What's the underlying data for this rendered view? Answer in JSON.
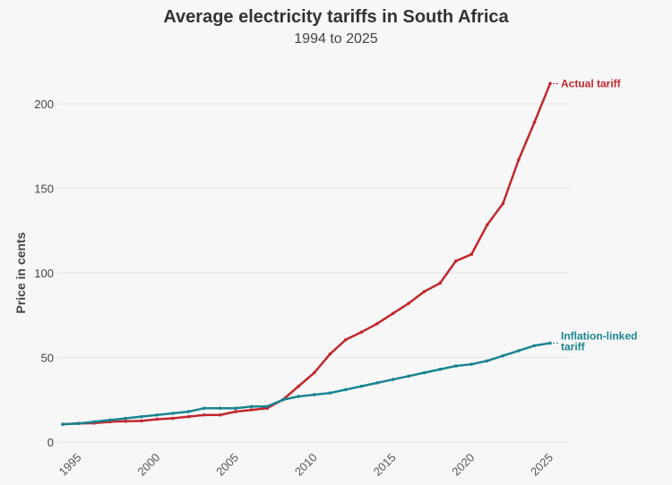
{
  "chart_data": {
    "type": "line",
    "title": "Average electricity tariffs in South Africa",
    "subtitle": "1994 to 2025",
    "xlabel": "",
    "ylabel": "Price in cents",
    "xlim": [
      1994,
      2025
    ],
    "ylim": [
      0,
      215
    ],
    "x_ticks": [
      1995,
      2000,
      2005,
      2010,
      2015,
      2020,
      2025
    ],
    "y_ticks": [
      0,
      50,
      100,
      150,
      200
    ],
    "grid": true,
    "legend": "direct labels at line ends",
    "x": [
      1994,
      1995,
      1996,
      1997,
      1998,
      1999,
      2000,
      2001,
      2002,
      2003,
      2004,
      2005,
      2006,
      2007,
      2008,
      2009,
      2010,
      2011,
      2012,
      2013,
      2014,
      2015,
      2016,
      2017,
      2018,
      2019,
      2020,
      2021,
      2022,
      2023,
      2024,
      2025
    ],
    "series": [
      {
        "name": "Actual tariff",
        "color": "#c0282d",
        "values": [
          10.5,
          11,
          11.2,
          12,
          12.3,
          12.5,
          13.5,
          14,
          15,
          16,
          16,
          18,
          19,
          20,
          25,
          33,
          41,
          52,
          60.5,
          65,
          70,
          76,
          82,
          89,
          94,
          107,
          111,
          128.5,
          141,
          167,
          189,
          212
        ]
      },
      {
        "name": "Inflation-linked tariff",
        "color": "#1a8490",
        "values": [
          10.5,
          11,
          12,
          13,
          14,
          15,
          16,
          17,
          18,
          20,
          20,
          20,
          21,
          21,
          25,
          27,
          28,
          29,
          31,
          33,
          35,
          37,
          39,
          41,
          43,
          45,
          46,
          48,
          51,
          54,
          57,
          58.5
        ]
      }
    ]
  }
}
